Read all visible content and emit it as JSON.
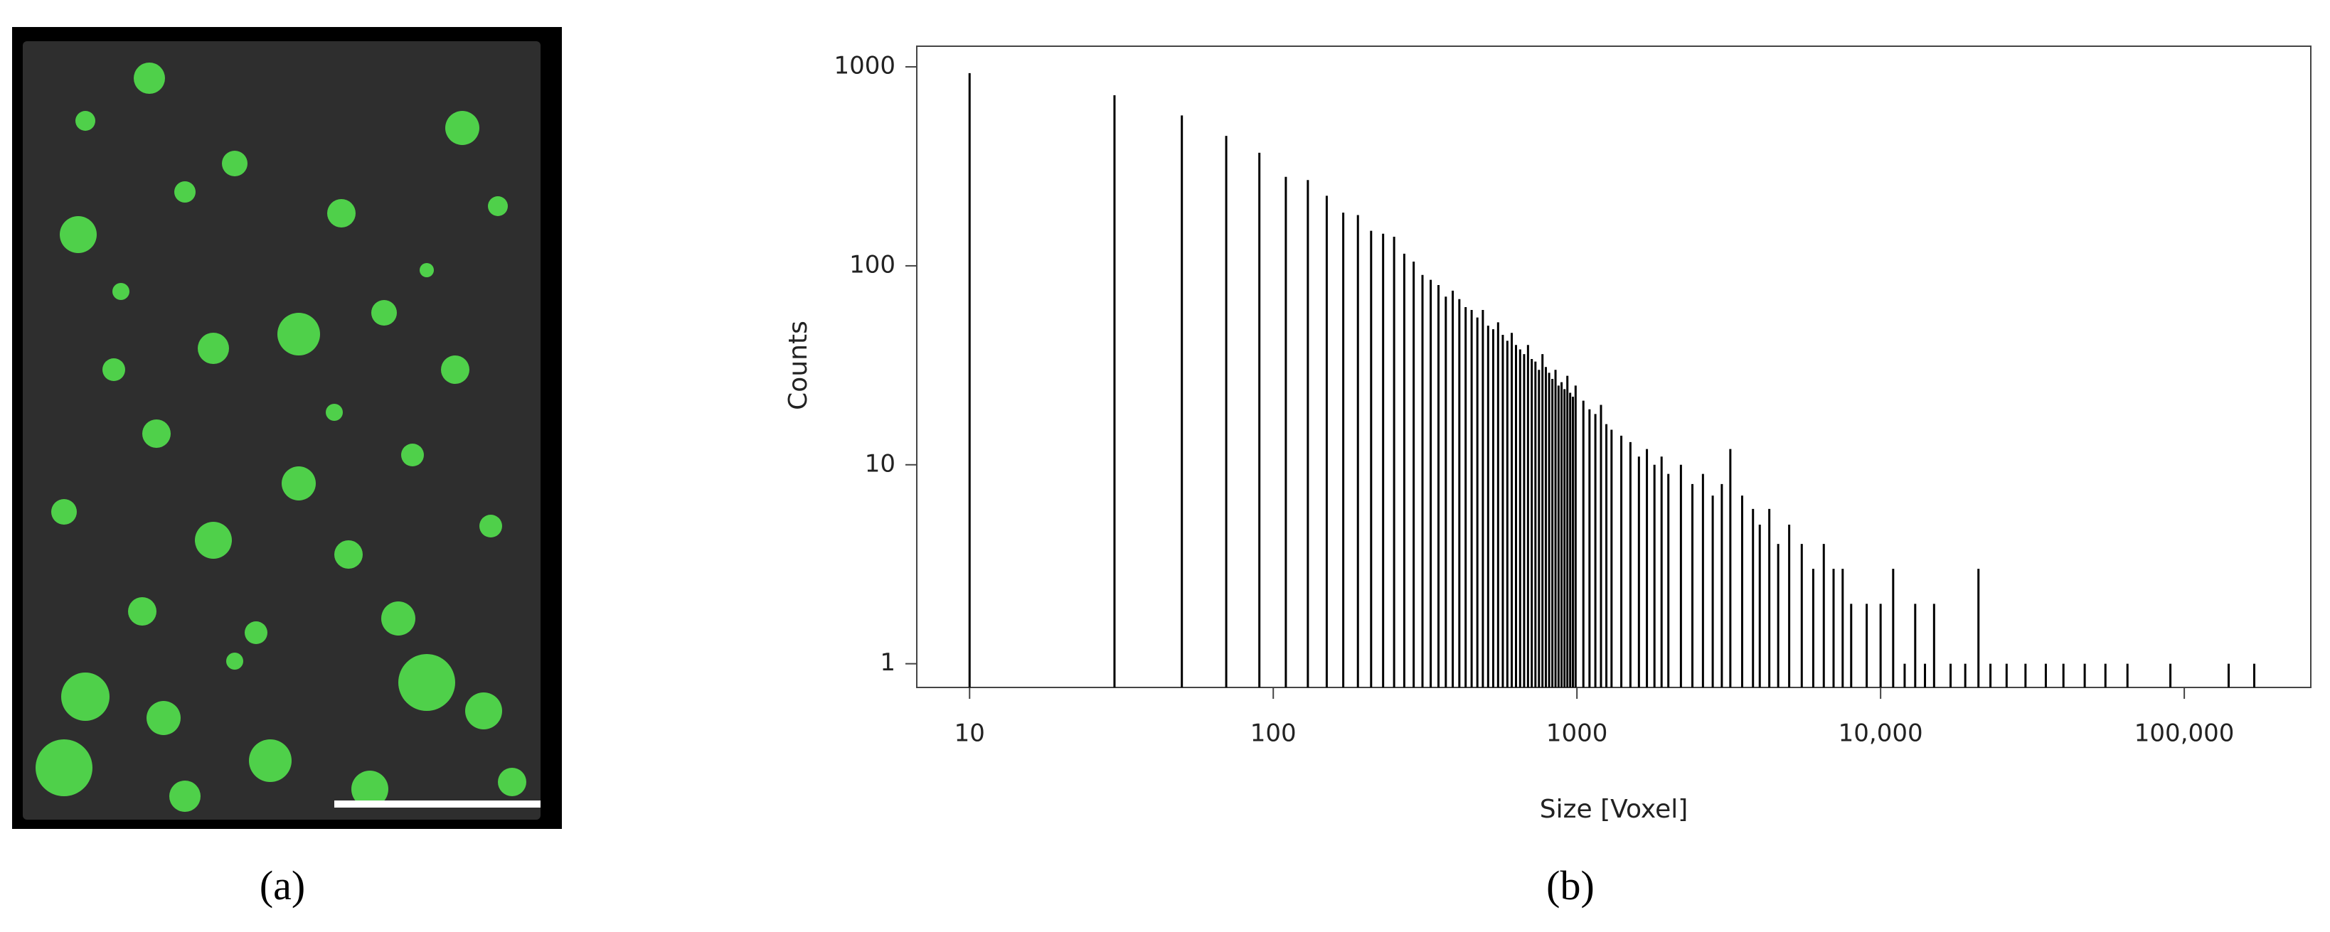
{
  "panel_labels": [
    "(a)",
    "(b)"
  ],
  "chart_data": {
    "type": "spike",
    "x_label": "Size [Voxel]",
    "y_label": "Counts",
    "color": "#000000",
    "x_log": true,
    "y_log": true,
    "grid": false,
    "xlim": [
      6.7,
      261000
    ],
    "ylim": [
      0.76,
      1270
    ],
    "xticks": [
      10,
      100,
      1000,
      {
        "value": 10000,
        "label": "10,000"
      },
      {
        "value": 100000,
        "label": "100,000"
      }
    ],
    "yticks": [
      1,
      10,
      100,
      1000
    ],
    "x": [
      10,
      30,
      50,
      70,
      90,
      110,
      130,
      150,
      170,
      190,
      210,
      230,
      250,
      270,
      290,
      310,
      330,
      350,
      370,
      390,
      410,
      430,
      450,
      470,
      490,
      510,
      530,
      550,
      570,
      590,
      610,
      630,
      650,
      670,
      690,
      710,
      730,
      750,
      770,
      790,
      810,
      830,
      850,
      870,
      890,
      910,
      930,
      950,
      970,
      990,
      1050,
      1100,
      1150,
      1200,
      1250,
      1300,
      1400,
      1500,
      1600,
      1700,
      1800,
      1900,
      2000,
      2200,
      2400,
      2600,
      2800,
      3000,
      3200,
      3500,
      3800,
      4000,
      4300,
      4600,
      5000,
      5500,
      6000,
      6500,
      7000,
      7500,
      8000,
      9000,
      10000,
      11000,
      12000,
      13000,
      14000,
      15000,
      17000,
      19000,
      21000,
      23000,
      26000,
      30000,
      35000,
      40000,
      47000,
      55000,
      65000,
      90000,
      140000,
      170000
    ],
    "values": [
      930,
      720,
      570,
      450,
      370,
      280,
      270,
      225,
      185,
      180,
      150,
      145,
      140,
      115,
      105,
      90,
      85,
      80,
      70,
      75,
      68,
      62,
      60,
      55,
      60,
      50,
      48,
      52,
      45,
      42,
      46,
      40,
      38,
      36,
      40,
      34,
      33,
      30,
      36,
      31,
      29,
      27,
      30,
      25,
      26,
      24,
      28,
      23,
      22,
      25,
      21,
      19,
      18,
      20,
      16,
      15,
      14,
      13,
      11,
      12,
      10,
      11,
      9,
      10,
      8,
      9,
      7,
      8,
      12,
      7,
      6,
      5,
      6,
      4,
      5,
      4,
      3,
      4,
      3,
      3,
      2,
      2,
      2,
      3,
      1,
      2,
      1,
      2,
      1,
      1,
      3,
      1,
      1,
      1,
      1,
      1,
      1,
      1,
      1,
      1,
      1,
      1
    ]
  }
}
